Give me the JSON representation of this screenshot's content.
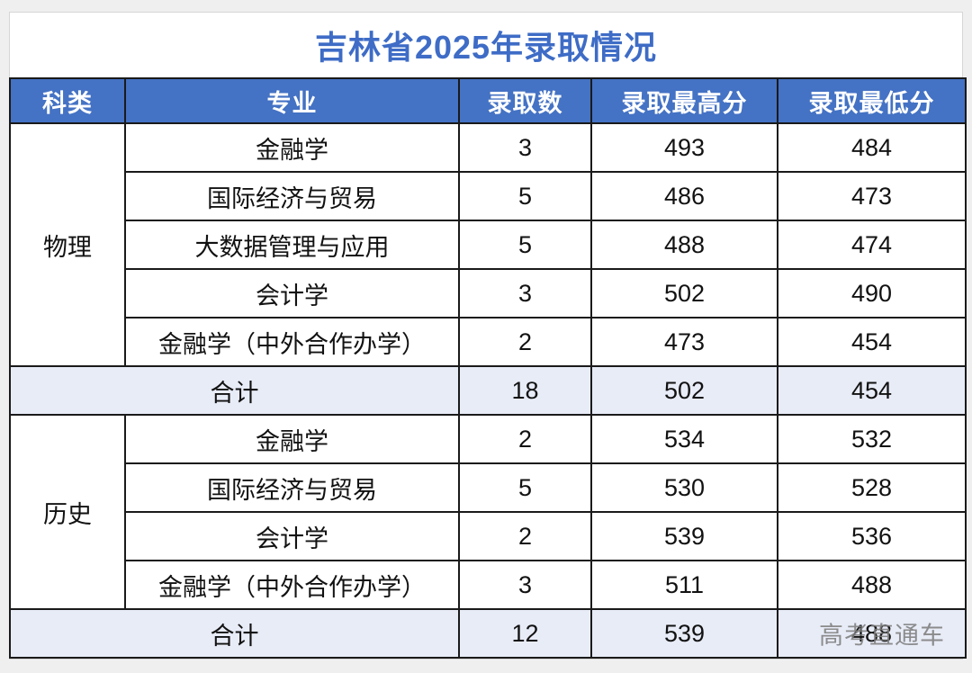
{
  "page": {
    "title": "吉林省2025年录取情况"
  },
  "watermark": {
    "text": "高考直通车"
  },
  "colors": {
    "header_bg": "#4472C4",
    "title_blue": "#3E6CC6",
    "total_row_bg": "#E8ECF7",
    "border": "#1A1A1A",
    "watermark_gray": "#7D7D7D",
    "page_bg": "#EFEFEF"
  },
  "table": {
    "headers": [
      "科类",
      "专业",
      "录取数",
      "录取最高分",
      "录取最低分"
    ],
    "sections": [
      {
        "category": "物理",
        "rows": [
          {
            "major": "金融学",
            "count": "3",
            "max": "493",
            "min": "484"
          },
          {
            "major": "国际经济与贸易",
            "count": "5",
            "max": "486",
            "min": "473"
          },
          {
            "major": "大数据管理与应用",
            "count": "5",
            "max": "488",
            "min": "474"
          },
          {
            "major": "会计学",
            "count": "3",
            "max": "502",
            "min": "490"
          },
          {
            "major": "金融学（中外合作办学）",
            "count": "2",
            "max": "473",
            "min": "454"
          }
        ],
        "total": {
          "label": "合计",
          "count": "18",
          "max": "502",
          "min": "454"
        }
      },
      {
        "category": "历史",
        "rows": [
          {
            "major": "金融学",
            "count": "2",
            "max": "534",
            "min": "532"
          },
          {
            "major": "国际经济与贸易",
            "count": "5",
            "max": "530",
            "min": "528"
          },
          {
            "major": "会计学",
            "count": "2",
            "max": "539",
            "min": "536"
          },
          {
            "major": "金融学（中外合作办学）",
            "count": "3",
            "max": "511",
            "min": "488"
          }
        ],
        "total": {
          "label": "合计",
          "count": "12",
          "max": "539",
          "min": "488"
        }
      }
    ]
  }
}
